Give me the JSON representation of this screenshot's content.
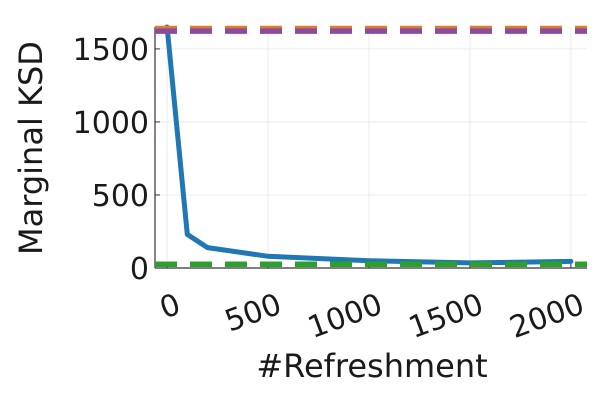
{
  "chart_data": {
    "type": "line",
    "title": "",
    "xlabel": "#Refreshment",
    "ylabel": "Marginal KSD",
    "xlim": [
      -60,
      2080
    ],
    "ylim": [
      0,
      1650
    ],
    "xticks": [
      0,
      500,
      1000,
      1500,
      2000
    ],
    "xtick_labels": [
      "0",
      "500",
      "1000",
      "1500",
      "2000"
    ],
    "yticks": [
      0,
      500,
      1000,
      1500
    ],
    "ytick_labels": [
      "0",
      "500",
      "1000",
      "1500"
    ],
    "grid": true,
    "legend": "none",
    "series": [
      {
        "style": "solid",
        "color": "#1f77b4",
        "x": [
          0,
          100,
          200,
          500,
          1000,
          1500,
          2000
        ],
        "y": [
          1650,
          230,
          140,
          80,
          50,
          35,
          45
        ]
      },
      {
        "style": "dashed",
        "color": "#e07b28",
        "x": [
          -60,
          2080
        ],
        "y": [
          1640,
          1640
        ]
      },
      {
        "style": "dashed",
        "color": "#8a4ca3",
        "x": [
          -60,
          2080
        ],
        "y": [
          1622,
          1622
        ]
      },
      {
        "style": "dashed",
        "color": "#2ca02c",
        "x": [
          -60,
          2080
        ],
        "y": [
          25,
          25
        ]
      }
    ]
  }
}
